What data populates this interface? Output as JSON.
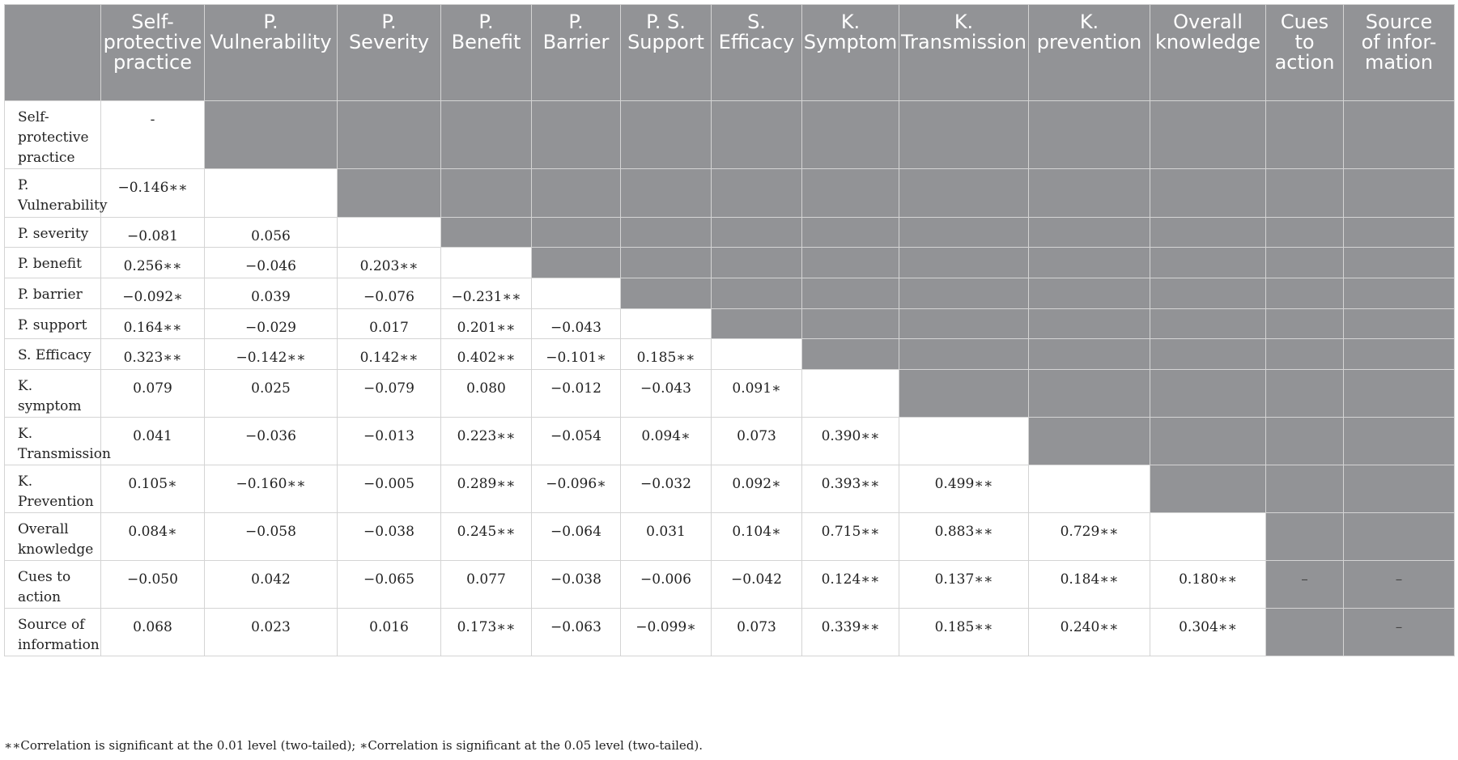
{
  "table": {
    "columns": [
      "Self-\nprotective\npractice",
      "P.\nVulnerability",
      "P.\nSeverity",
      "P.\nBenefit",
      "P.\nBarrier",
      "P. S.\nSupport",
      "S.\nEfficacy",
      "K.\nSymptom",
      "K.\nTransmission",
      "K.\nprevention",
      "Overall\nknowledge",
      "Cues\nto\naction",
      "Source\nof infor-\nmation"
    ],
    "rows": [
      {
        "label": "Self-\nprotective\npractice",
        "cells": [
          "-",
          "",
          "",
          "",
          "",
          "",
          "",
          "",
          "",
          "",
          "",
          "",
          ""
        ]
      },
      {
        "label": "P.\nVulnerability",
        "cells": [
          "−0.146∗∗",
          "",
          "",
          "",
          "",
          "",
          "",
          "",
          "",
          "",
          "",
          "",
          ""
        ]
      },
      {
        "label": "P. severity",
        "cells": [
          "−0.081",
          "0.056",
          "",
          "",
          "",
          "",
          "",
          "",
          "",
          "",
          "",
          "",
          ""
        ]
      },
      {
        "label": "P. benefit",
        "cells": [
          "0.256∗∗",
          "−0.046",
          "0.203∗∗",
          "",
          "",
          "",
          "",
          "",
          "",
          "",
          "",
          "",
          ""
        ]
      },
      {
        "label": "P. barrier",
        "cells": [
          "−0.092∗",
          "0.039",
          "−0.076",
          "−0.231∗∗",
          "",
          "",
          "",
          "",
          "",
          "",
          "",
          "",
          ""
        ]
      },
      {
        "label": "P. support",
        "cells": [
          "0.164∗∗",
          "−0.029",
          "0.017",
          "0.201∗∗",
          "−0.043",
          "",
          "",
          "",
          "",
          "",
          "",
          "",
          ""
        ]
      },
      {
        "label": "S. Efficacy",
        "cells": [
          "0.323∗∗",
          "−0.142∗∗",
          "0.142∗∗",
          "0.402∗∗",
          "−0.101∗",
          "0.185∗∗",
          "",
          "",
          "",
          "",
          "",
          "",
          ""
        ]
      },
      {
        "label": "K.\nsymptom",
        "cells": [
          "0.079",
          "0.025",
          "−0.079",
          "0.080",
          "−0.012",
          "−0.043",
          "0.091∗",
          "",
          "",
          "",
          "",
          "",
          ""
        ]
      },
      {
        "label": "K.\nTransmission",
        "cells": [
          "0.041",
          "−0.036",
          "−0.013",
          "0.223∗∗",
          "−0.054",
          "0.094∗",
          "0.073",
          "0.390∗∗",
          "",
          "",
          "",
          "",
          ""
        ]
      },
      {
        "label": "K.\nPrevention",
        "cells": [
          "0.105∗",
          "−0.160∗∗",
          "−0.005",
          "0.289∗∗",
          "−0.096∗",
          "−0.032",
          "0.092∗",
          "0.393∗∗",
          "0.499∗∗",
          "",
          "",
          "",
          ""
        ]
      },
      {
        "label": "Overall\nknowledge",
        "cells": [
          "0.084∗",
          "−0.058",
          "−0.038",
          "0.245∗∗",
          "−0.064",
          "0.031",
          "0.104∗",
          "0.715∗∗",
          "0.883∗∗",
          "0.729∗∗",
          "",
          "",
          ""
        ]
      },
      {
        "label": "Cues to\naction",
        "cells": [
          "−0.050",
          "0.042",
          "−0.065",
          "0.077",
          "−0.038",
          "−0.006",
          "−0.042",
          "0.124∗∗",
          "0.137∗∗",
          "0.184∗∗",
          "0.180∗∗",
          "–",
          "–"
        ]
      },
      {
        "label": "Source of\ninformation",
        "cells": [
          "0.068",
          "0.023",
          "0.016",
          "0.173∗∗",
          "−0.063",
          "−0.099∗",
          "0.073",
          "0.339∗∗",
          "0.185∗∗",
          "0.240∗∗",
          "0.304∗∗",
          "",
          "–"
        ]
      }
    ]
  },
  "footnote": "∗∗Correlation is significant at the 0.01 level (two-tailed); ∗Correlation is significant at the 0.05 level (two-tailed)."
}
